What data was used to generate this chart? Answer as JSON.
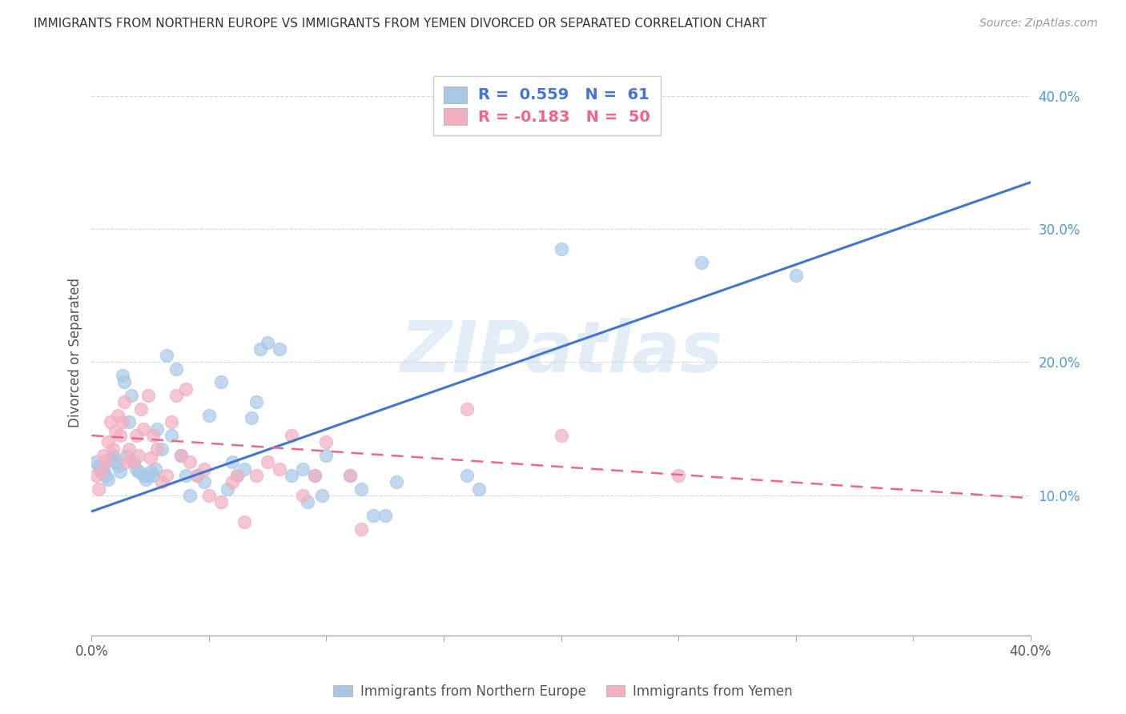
{
  "title": "IMMIGRANTS FROM NORTHERN EUROPE VS IMMIGRANTS FROM YEMEN DIVORCED OR SEPARATED CORRELATION CHART",
  "source": "Source: ZipAtlas.com",
  "ylabel": "Divorced or Separated",
  "xlim": [
    0.0,
    0.4
  ],
  "ylim": [
    -0.005,
    0.42
  ],
  "yticks": [
    0.1,
    0.2,
    0.3,
    0.4
  ],
  "ytick_labels": [
    "10.0%",
    "20.0%",
    "30.0%",
    "40.0%"
  ],
  "xticks": [
    0.0,
    0.05,
    0.1,
    0.15,
    0.2,
    0.25,
    0.3,
    0.35,
    0.4
  ],
  "xtick_labels_show": [
    "0.0%",
    "",
    "",
    "",
    "",
    "",
    "",
    "",
    "40.0%"
  ],
  "blue_color": "#a8c8e8",
  "pink_color": "#f0b0c0",
  "blue_line_color": "#4477cc",
  "pink_line_color": "#ee6688",
  "watermark": "ZIPatlas",
  "blue_scatter": [
    [
      0.002,
      0.125
    ],
    [
      0.003,
      0.122
    ],
    [
      0.004,
      0.118
    ],
    [
      0.005,
      0.12
    ],
    [
      0.006,
      0.115
    ],
    [
      0.007,
      0.112
    ],
    [
      0.008,
      0.128
    ],
    [
      0.009,
      0.13
    ],
    [
      0.01,
      0.125
    ],
    [
      0.011,
      0.122
    ],
    [
      0.012,
      0.118
    ],
    [
      0.013,
      0.19
    ],
    [
      0.014,
      0.185
    ],
    [
      0.015,
      0.13
    ],
    [
      0.016,
      0.155
    ],
    [
      0.017,
      0.175
    ],
    [
      0.018,
      0.125
    ],
    [
      0.019,
      0.12
    ],
    [
      0.02,
      0.118
    ],
    [
      0.022,
      0.115
    ],
    [
      0.023,
      0.112
    ],
    [
      0.024,
      0.115
    ],
    [
      0.025,
      0.118
    ],
    [
      0.026,
      0.115
    ],
    [
      0.027,
      0.12
    ],
    [
      0.028,
      0.15
    ],
    [
      0.03,
      0.135
    ],
    [
      0.032,
      0.205
    ],
    [
      0.034,
      0.145
    ],
    [
      0.036,
      0.195
    ],
    [
      0.038,
      0.13
    ],
    [
      0.04,
      0.115
    ],
    [
      0.042,
      0.1
    ],
    [
      0.045,
      0.115
    ],
    [
      0.048,
      0.11
    ],
    [
      0.05,
      0.16
    ],
    [
      0.055,
      0.185
    ],
    [
      0.058,
      0.105
    ],
    [
      0.06,
      0.125
    ],
    [
      0.062,
      0.115
    ],
    [
      0.065,
      0.12
    ],
    [
      0.068,
      0.158
    ],
    [
      0.07,
      0.17
    ],
    [
      0.072,
      0.21
    ],
    [
      0.075,
      0.215
    ],
    [
      0.08,
      0.21
    ],
    [
      0.085,
      0.115
    ],
    [
      0.09,
      0.12
    ],
    [
      0.092,
      0.095
    ],
    [
      0.095,
      0.115
    ],
    [
      0.098,
      0.1
    ],
    [
      0.1,
      0.13
    ],
    [
      0.11,
      0.115
    ],
    [
      0.115,
      0.105
    ],
    [
      0.12,
      0.085
    ],
    [
      0.125,
      0.085
    ],
    [
      0.13,
      0.11
    ],
    [
      0.16,
      0.115
    ],
    [
      0.165,
      0.105
    ],
    [
      0.2,
      0.285
    ],
    [
      0.26,
      0.275
    ],
    [
      0.3,
      0.265
    ]
  ],
  "pink_scatter": [
    [
      0.002,
      0.115
    ],
    [
      0.003,
      0.105
    ],
    [
      0.004,
      0.118
    ],
    [
      0.005,
      0.13
    ],
    [
      0.006,
      0.125
    ],
    [
      0.007,
      0.14
    ],
    [
      0.008,
      0.155
    ],
    [
      0.009,
      0.135
    ],
    [
      0.01,
      0.148
    ],
    [
      0.011,
      0.16
    ],
    [
      0.012,
      0.145
    ],
    [
      0.013,
      0.155
    ],
    [
      0.014,
      0.17
    ],
    [
      0.015,
      0.125
    ],
    [
      0.016,
      0.135
    ],
    [
      0.018,
      0.125
    ],
    [
      0.019,
      0.145
    ],
    [
      0.02,
      0.13
    ],
    [
      0.021,
      0.165
    ],
    [
      0.022,
      0.15
    ],
    [
      0.024,
      0.175
    ],
    [
      0.025,
      0.128
    ],
    [
      0.026,
      0.145
    ],
    [
      0.028,
      0.135
    ],
    [
      0.03,
      0.11
    ],
    [
      0.032,
      0.115
    ],
    [
      0.034,
      0.155
    ],
    [
      0.036,
      0.175
    ],
    [
      0.038,
      0.13
    ],
    [
      0.04,
      0.18
    ],
    [
      0.042,
      0.125
    ],
    [
      0.045,
      0.115
    ],
    [
      0.048,
      0.12
    ],
    [
      0.05,
      0.1
    ],
    [
      0.055,
      0.095
    ],
    [
      0.06,
      0.11
    ],
    [
      0.062,
      0.115
    ],
    [
      0.065,
      0.08
    ],
    [
      0.07,
      0.115
    ],
    [
      0.075,
      0.125
    ],
    [
      0.08,
      0.12
    ],
    [
      0.085,
      0.145
    ],
    [
      0.09,
      0.1
    ],
    [
      0.095,
      0.115
    ],
    [
      0.1,
      0.14
    ],
    [
      0.11,
      0.115
    ],
    [
      0.115,
      0.075
    ],
    [
      0.16,
      0.165
    ],
    [
      0.2,
      0.145
    ],
    [
      0.25,
      0.115
    ]
  ],
  "blue_trend_x": [
    0.0,
    0.4
  ],
  "blue_trend_y": [
    0.088,
    0.335
  ],
  "pink_trend_x": [
    0.0,
    0.4
  ],
  "pink_trend_y": [
    0.145,
    0.098
  ],
  "grid_color": "#cccccc",
  "grid_style": "--"
}
